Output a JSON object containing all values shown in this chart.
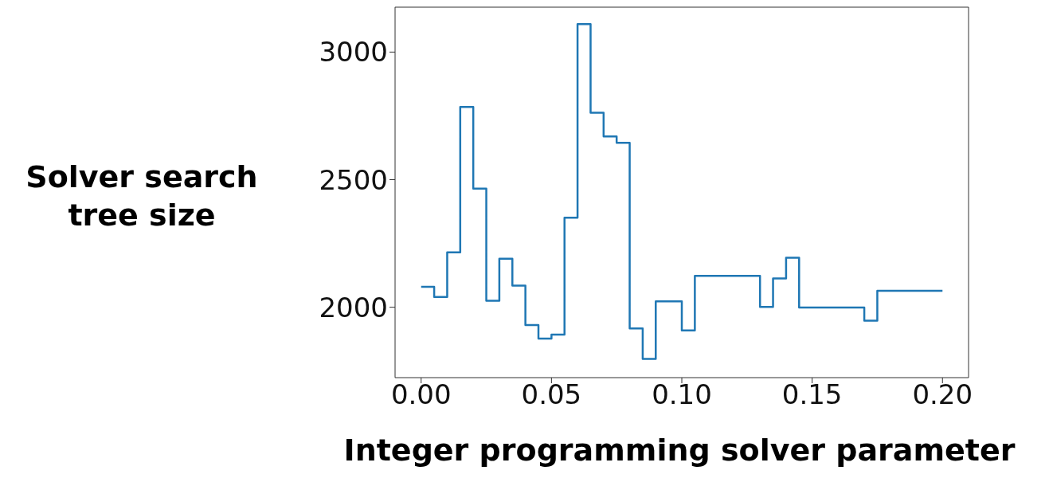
{
  "chart_data": {
    "type": "step",
    "xlabel": "Integer programming solver parameter",
    "ylabel": "Solver search tree size",
    "x": [
      0,
      0.005,
      0.01,
      0.015,
      0.02,
      0.025,
      0.03,
      0.035,
      0.04,
      0.045,
      0.05,
      0.055,
      0.06,
      0.065,
      0.07,
      0.075,
      0.08,
      0.085,
      0.09,
      0.095,
      0.1,
      0.105,
      0.11,
      0.115,
      0.12,
      0.125,
      0.13,
      0.135,
      0.14,
      0.145,
      0.15,
      0.155,
      0.16,
      0.165,
      0.17,
      0.175,
      0.18,
      0.185,
      0.19,
      0.195,
      0.2
    ],
    "series": [
      {
        "color": "#1f77b4",
        "values": [
          2080,
          2040,
          2215,
          2785,
          2465,
          2025,
          2190,
          2085,
          1930,
          1877,
          1893,
          2351,
          3110,
          2762,
          2669,
          2644,
          1917,
          1797,
          2023,
          2023,
          1909,
          2123,
          2123,
          2123,
          2123,
          2123,
          2001,
          2113,
          2194,
          1999,
          1999,
          1999,
          1999,
          1999,
          1947,
          2064,
          2064,
          2064,
          2064,
          2064,
          2064
        ]
      }
    ],
    "xlim": [
      -0.01,
      0.21
    ],
    "ylim": [
      1724,
      3176
    ],
    "xticks": [
      {
        "value": 0,
        "label": "0.00"
      },
      {
        "value": 0.05,
        "label": "0.05"
      },
      {
        "value": 0.1,
        "label": "0.10"
      },
      {
        "value": 0.15,
        "label": "0.15"
      },
      {
        "value": 0.2,
        "label": "0.20"
      }
    ],
    "yticks": [
      2000,
      2500,
      3000
    ]
  }
}
